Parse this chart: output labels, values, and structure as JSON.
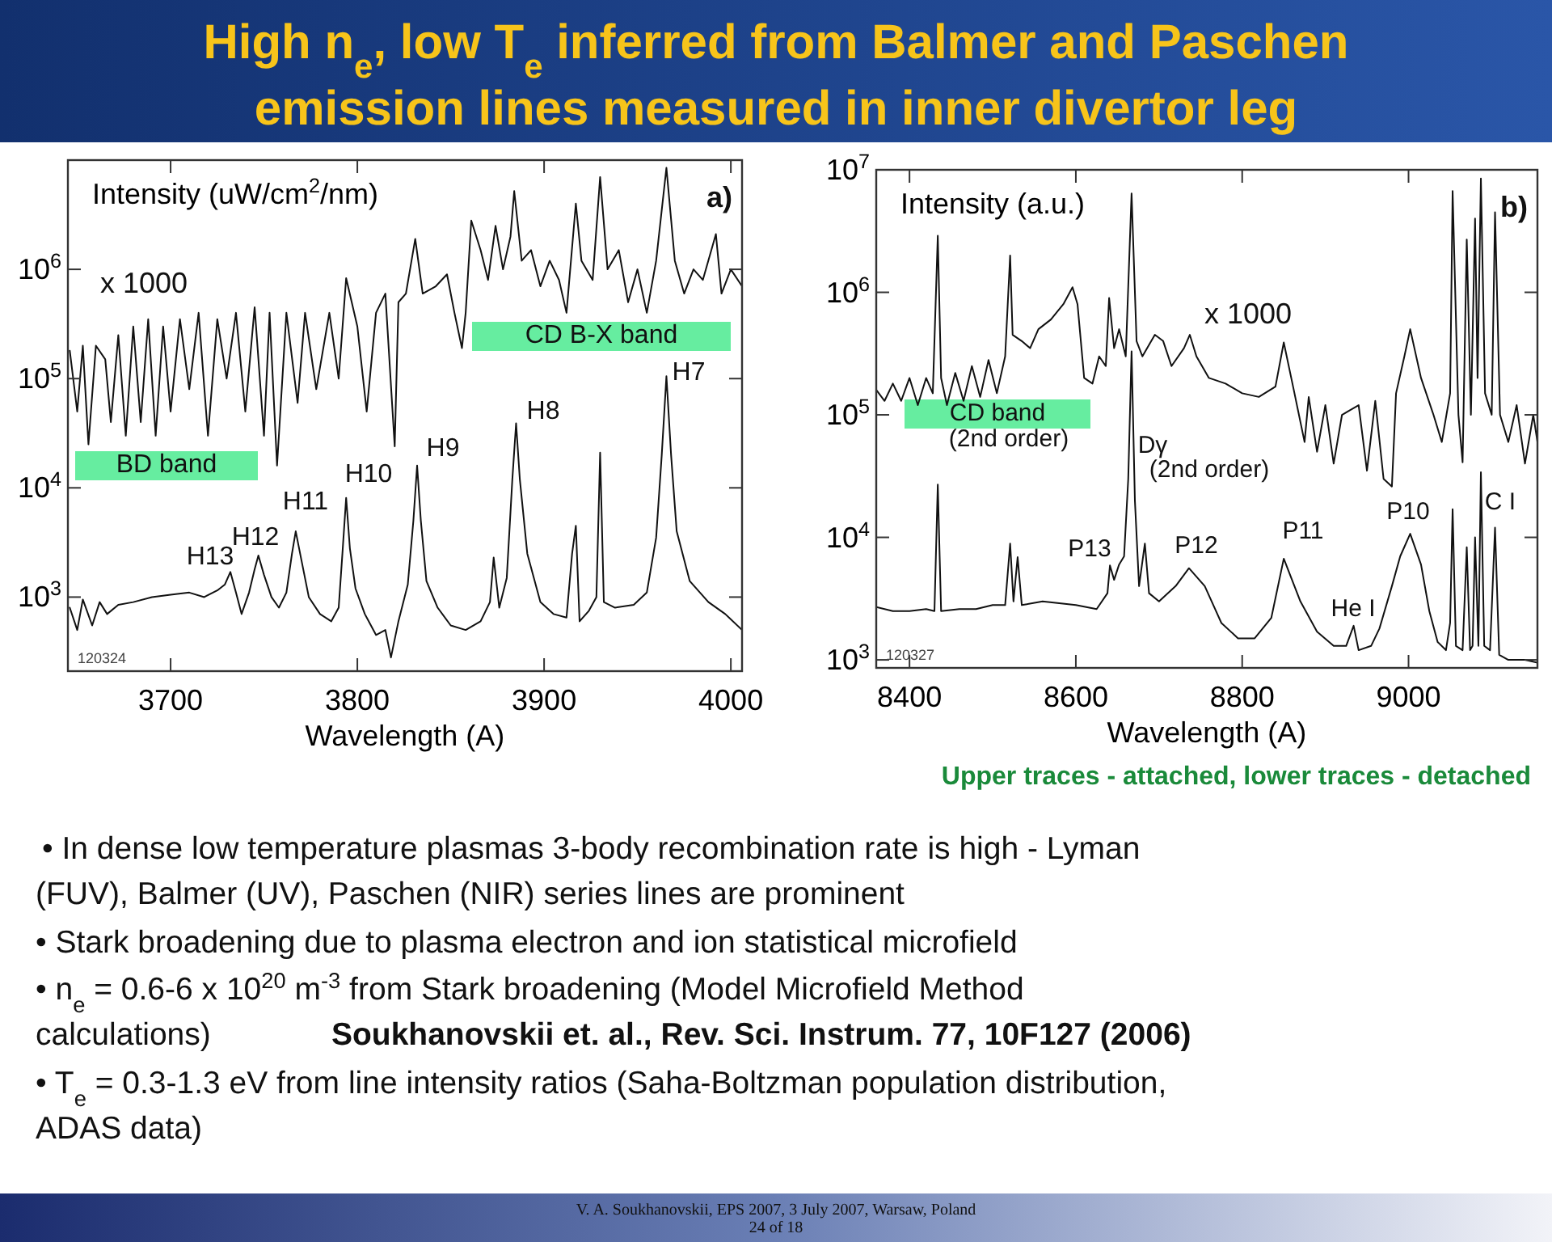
{
  "chart_data": [
    {
      "type": "line",
      "log": "y",
      "ylabel": "Intensity (uW/cm$^{2}$/nm)",
      "xlabel": "Wavelength (A)",
      "xlim": [
        3645,
        4006
      ],
      "xticks": [
        3700,
        3800,
        3900,
        4000
      ],
      "ylim": [
        210,
        10000000
      ],
      "yticks": [
        {
          "value": 1000,
          "label": "10$^{3}$"
        },
        {
          "value": 10000,
          "label": "10$^{4}$"
        },
        {
          "value": 100000,
          "label": "10$^{5}$"
        },
        {
          "value": 1000000,
          "label": "10$^{6}$"
        }
      ],
      "series": [
        {
          "color": "#111111",
          "x": [
            3646,
            3650,
            3653,
            3656,
            3660,
            3665,
            3668,
            3672,
            3676,
            3680,
            3684,
            3688,
            3692,
            3696,
            3700,
            3705,
            3710,
            3715,
            3720,
            3725,
            3730,
            3735,
            3740,
            3745,
            3750,
            3753,
            3757,
            3762,
            3768,
            3772,
            3778,
            3785,
            3790,
            3794,
            3800,
            3805,
            3810,
            3815,
            3820,
            3822,
            3826,
            3831,
            3835,
            3842,
            3848,
            3852,
            3856,
            3858,
            3861,
            3866,
            3870,
            3874,
            3878,
            3882,
            3884,
            3888,
            3893,
            3898,
            3903,
            3908,
            3912,
            3917,
            3920,
            3926,
            3930,
            3934,
            3940,
            3945,
            3950,
            3955,
            3960,
            3965.5,
            3970,
            3975,
            3980,
            3985,
            3992,
            3995,
            4000,
            4006
          ],
          "values": [
            180000,
            50000,
            200000,
            25000,
            200000,
            150000,
            40000,
            250000,
            30000,
            300000,
            40000,
            350000,
            30000,
            300000,
            50000,
            350000,
            80000,
            400000,
            30000,
            350000,
            100000,
            400000,
            50000,
            450000,
            30000,
            400000,
            16000,
            400000,
            60000,
            400000,
            80000,
            400000,
            100000,
            830000,
            300000,
            50000,
            400000,
            600000,
            24000,
            500000,
            600000,
            1900000,
            600000,
            700000,
            900000,
            400000,
            190000,
            400000,
            2800000,
            1500000,
            800000,
            2500000,
            1000000,
            2000000,
            5200000,
            1200000,
            1500000,
            700000,
            1200000,
            800000,
            400000,
            4000000,
            1200000,
            800000,
            7000000,
            1000000,
            1500000,
            500000,
            1000000,
            400000,
            1200000,
            8500000,
            1200000,
            600000,
            1000000,
            800000,
            2100000,
            600000,
            1000000,
            700000
          ]
        },
        {
          "color": "#111111",
          "x": [
            3646,
            3650,
            3653,
            3658,
            3662,
            3666,
            3672,
            3680,
            3690,
            3700,
            3710,
            3718,
            3725,
            3729,
            3732,
            3735,
            3738,
            3742,
            3745,
            3747,
            3750,
            3754,
            3758,
            3762,
            3765,
            3767,
            3770,
            3774,
            3780,
            3786,
            3790,
            3792,
            3794,
            3796,
            3799,
            3804,
            3810,
            3815,
            3818,
            3822,
            3827,
            3830,
            3832,
            3834,
            3837,
            3843,
            3850,
            3858,
            3866,
            3871,
            3873,
            3876,
            3880,
            3883,
            3885,
            3887,
            3891,
            3898,
            3905,
            3912,
            3915,
            3917,
            3919,
            3924,
            3928,
            3930,
            3932,
            3938,
            3948,
            3955,
            3960,
            3963,
            3965.5,
            3968,
            3971,
            3978,
            3988,
            3997,
            4006
          ],
          "values": [
            800,
            500,
            950,
            550,
            900,
            700,
            850,
            900,
            1000,
            1050,
            1100,
            1000,
            1150,
            1300,
            1700,
            1100,
            700,
            1100,
            1800,
            2400,
            1600,
            1000,
            800,
            1100,
            2500,
            4000,
            2200,
            1000,
            700,
            600,
            800,
            2500,
            8100,
            2800,
            1200,
            700,
            450,
            500,
            280,
            600,
            1300,
            5000,
            16000,
            5000,
            1400,
            800,
            550,
            500,
            600,
            900,
            2300,
            800,
            1500,
            12000,
            39000,
            12000,
            2500,
            900,
            700,
            650,
            2500,
            4500,
            600,
            750,
            1000,
            21000,
            900,
            800,
            850,
            1100,
            3500,
            20000,
            105000,
            20000,
            4000,
            1400,
            900,
            700,
            500
          ]
        }
      ],
      "annotations": [
        "a)",
        "120324",
        "x 1000",
        "BD band",
        "CD B-X band",
        "H13",
        "H12",
        "H11",
        "H10",
        "H9",
        "H8",
        "H7"
      ]
    },
    {
      "type": "line",
      "log": "y",
      "ylabel": "Intensity (a.u.)",
      "xlabel": "Wavelength (A)",
      "xlim": [
        8360,
        9155
      ],
      "xticks": [
        8400,
        8600,
        8800,
        9000
      ],
      "ylim": [
        860,
        10000000
      ],
      "yticks": [
        {
          "value": 1000,
          "label": "10$^{3}$"
        },
        {
          "value": 10000,
          "label": "10$^{4}$"
        },
        {
          "value": 100000,
          "label": "10$^{5}$"
        },
        {
          "value": 1000000,
          "label": "10$^{6}$"
        },
        {
          "value": 10000000,
          "label": "10$^{7}$"
        }
      ],
      "series": [
        {
          "color": "#111111",
          "x": [
            8360,
            8370,
            8380,
            8390,
            8400,
            8410,
            8420,
            8428,
            8434,
            8438,
            8445,
            8455,
            8465,
            8475,
            8485,
            8495,
            8505,
            8515,
            8521,
            8524,
            8535,
            8545,
            8555,
            8570,
            8585,
            8596,
            8602,
            8610,
            8620,
            8628,
            8636,
            8640,
            8646,
            8652,
            8660,
            8667,
            8673,
            8680,
            8695,
            8705,
            8715,
            8730,
            8737,
            8745,
            8760,
            8780,
            8800,
            8820,
            8840,
            8850,
            8862,
            8875,
            8880,
            8890,
            8900,
            8910,
            8920,
            8940,
            8950,
            8960,
            8970,
            8980,
            8985,
            8995,
            9002,
            9015,
            9030,
            9040,
            9050,
            9053,
            9060,
            9065,
            9070,
            9075,
            9080,
            9083,
            9087,
            9092,
            9100,
            9104,
            9110,
            9120,
            9130,
            9140,
            9150,
            9155
          ],
          "values": [
            160000,
            130000,
            180000,
            130000,
            200000,
            120000,
            200000,
            150000,
            2900000,
            200000,
            120000,
            220000,
            130000,
            250000,
            140000,
            280000,
            150000,
            300000,
            2000000,
            450000,
            400000,
            350000,
            500000,
            600000,
            800000,
            1100000,
            800000,
            200000,
            180000,
            300000,
            250000,
            900000,
            350000,
            500000,
            300000,
            6400000,
            400000,
            300000,
            450000,
            400000,
            250000,
            350000,
            450000,
            300000,
            200000,
            180000,
            150000,
            140000,
            170000,
            390000,
            160000,
            60000,
            140000,
            50000,
            120000,
            40000,
            100000,
            120000,
            35000,
            130000,
            30000,
            26000,
            150000,
            300000,
            500000,
            200000,
            100000,
            60000,
            150000,
            6700000,
            100000,
            41000,
            2700000,
            100000,
            4000000,
            200000,
            8500000,
            150000,
            100000,
            4500000,
            100000,
            60000,
            120000,
            40000,
            100000,
            60000
          ]
        },
        {
          "color": "#111111",
          "x": [
            8360,
            8380,
            8400,
            8420,
            8430,
            8434,
            8438,
            8460,
            8480,
            8500,
            8515,
            8521,
            8525,
            8530,
            8535,
            8560,
            8580,
            8600,
            8625,
            8638,
            8641,
            8646,
            8652,
            8658,
            8663,
            8667,
            8671,
            8676,
            8683,
            8688,
            8700,
            8720,
            8736,
            8755,
            8775,
            8795,
            8815,
            8835,
            8850,
            8870,
            8890,
            8910,
            8925,
            8934,
            8940,
            8955,
            8965,
            8980,
            8990,
            9002,
            9015,
            9025,
            9035,
            9045,
            9050,
            9053,
            9057,
            9065,
            9070,
            9074,
            9077,
            9080,
            9084,
            9087,
            9091,
            9098,
            9104,
            9109,
            9120,
            9140,
            9155
          ],
          "values": [
            2700,
            2500,
            2500,
            2600,
            2500,
            27000,
            2500,
            2600,
            2600,
            2800,
            2800,
            8900,
            3000,
            6900,
            2800,
            3000,
            2900,
            2800,
            2600,
            3500,
            5900,
            4500,
            6000,
            7000,
            30000,
            330000,
            20000,
            4000,
            8900,
            3500,
            3000,
            4000,
            5600,
            4000,
            2000,
            1500,
            1500,
            2200,
            6700,
            3000,
            1700,
            1300,
            1300,
            1900,
            1200,
            1300,
            1800,
            4000,
            7000,
            10700,
            6000,
            2500,
            1400,
            1200,
            2000,
            17000,
            1300,
            1200,
            8300,
            1200,
            1300,
            10000,
            1300,
            34000,
            1300,
            1200,
            12000,
            1100,
            1000,
            1000,
            950
          ]
        }
      ],
      "annotations": [
        "b)",
        "120327",
        "x 1000",
        "CD band",
        "(2nd order)",
        "Dγ",
        "(2nd order)",
        "P13",
        "P12",
        "P11",
        "P10",
        "He I",
        "C I"
      ]
    },
    {
      "type": "other",
      "title": "High n$_{e}$, low T$_{e}$ inferred from Balmer and Paschen\nemission lines measured in inner divertor leg",
      "annotations": [
        "Upper traces - attached, lower traces - detached",
        "•  In dense low temperature plasmas 3-body recombination rate is high - Lyman",
        "(FUV), Balmer (UV), Paschen (NIR) series lines are prominent",
        "• Stark broadening due to plasma electron and ion statistical microfield",
        "• n$_{e}$ = 0.6-6 x 10$^{20}$ m$^{-3}$ from Stark broadening (Model Microfield Method",
        "calculations)",
        "Soukhanovskii et. al., Rev. Sci. Instrum. 77, 10F127 (2006)",
        "• T$_{e}$ = 0.3-1.3 eV from line intensity ratios (Saha-Boltzman population distribution,",
        "ADAS data)",
        "V. A. Soukhanovskii, EPS 2007, 3 July 2007, Warsaw, Poland",
        "24 of 18"
      ]
    }
  ]
}
